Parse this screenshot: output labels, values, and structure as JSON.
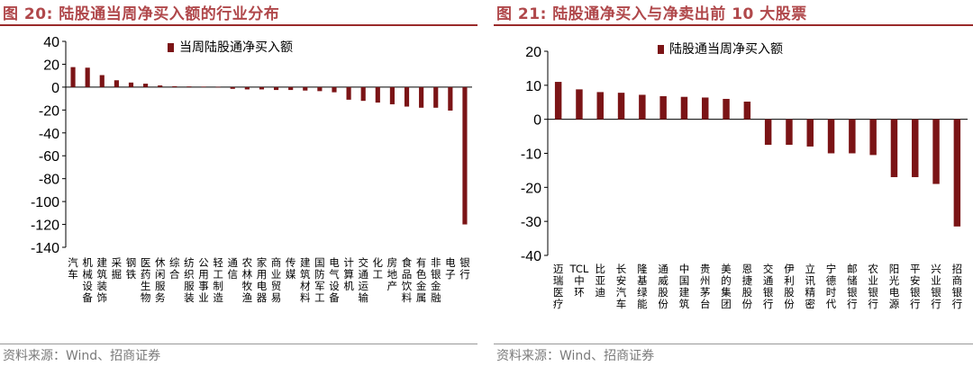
{
  "left": {
    "title": "图 20: 陆股通当周净买入额的行业分布",
    "source": "资料来源：Wind、招商证券",
    "chart_data": {
      "type": "bar",
      "legend": [
        "当周陆股通净买入额"
      ],
      "bar_color": "#7b1416",
      "ylim": [
        -140,
        40
      ],
      "yticks": [
        40,
        20,
        0,
        -20,
        -40,
        -60,
        -80,
        -100,
        -120,
        -140
      ],
      "grid": false,
      "categories": [
        "汽车",
        "机械设备",
        "建筑装饰",
        "采掘",
        "钢铁",
        "医药生物",
        "休闲服务",
        "综合",
        "纺织服装",
        "公用事业",
        "轻工制造",
        "通信",
        "农林牧渔",
        "家用电器",
        "商业贸易",
        "传媒",
        "建筑材料",
        "国防军工",
        "电气设备",
        "计算机",
        "交通运输",
        "化工",
        "房地产",
        "食品饮料",
        "有色金属",
        "非银金融",
        "电子",
        "银行"
      ],
      "values": [
        17.5,
        17,
        10.5,
        6,
        4,
        3,
        1.5,
        0.8,
        0.6,
        0.4,
        0.2,
        -1.5,
        -2,
        -2,
        -2.5,
        -2.5,
        -3,
        -3.5,
        -4.5,
        -11,
        -12,
        -13.5,
        -15,
        -17,
        -18,
        -18,
        -20.5,
        -120
      ]
    }
  },
  "right": {
    "title": "图 21: 陆股通净买入与净卖出前 10 大股票",
    "source": "资料来源：Wind、招商证券",
    "chart_data": {
      "type": "bar",
      "legend": [
        "陆股通当周净买入额"
      ],
      "bar_color": "#7b1416",
      "ylim": [
        -40,
        20
      ],
      "yticks": [
        20,
        10,
        0,
        -10,
        -20,
        -30,
        -40
      ],
      "grid": false,
      "categories": [
        "迈瑞医疗",
        "TCL中环",
        "比亚迪",
        "长安汽车",
        "隆基绿能",
        "通威股份",
        "中国建筑",
        "贵州茅台",
        "美的集团",
        "恩捷股份",
        "交通银行",
        "伊利股份",
        "立讯精密",
        "宁德时代",
        "邮储银行",
        "农业银行",
        "阳光电源",
        "平安银行",
        "兴业银行",
        "招商银行"
      ],
      "values": [
        11,
        8.8,
        8,
        7.8,
        7.2,
        6.8,
        6.6,
        6.4,
        6,
        5.2,
        -7.5,
        -7.5,
        -8,
        -10,
        -10,
        -10.5,
        -17,
        -17,
        -19,
        -31.5
      ]
    }
  }
}
